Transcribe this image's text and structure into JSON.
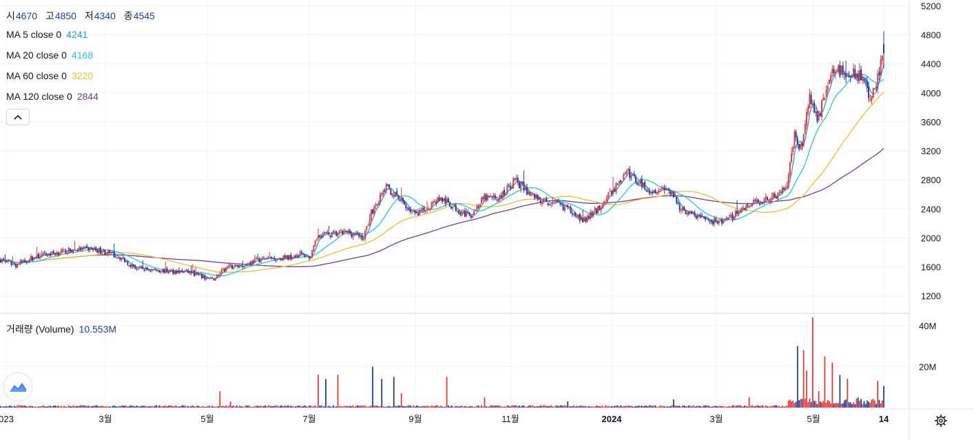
{
  "ohlc": {
    "open_label": "시",
    "open": "4670",
    "high_label": "고",
    "high": "4850",
    "low_label": "저",
    "low": "4340",
    "close_label": "종",
    "close": "4545"
  },
  "ma_legend": [
    {
      "label": "MA 5 close 0",
      "value": "4241",
      "color": "#2196f3"
    },
    {
      "label": "MA 20 close 0",
      "value": "4168",
      "color": "#26c6da"
    },
    {
      "label": "MA 60 close 0",
      "value": "3220",
      "color": "#f5bb2f"
    },
    {
      "label": "MA 120 close 0",
      "value": "2844",
      "color": "#6a3d9a"
    }
  ],
  "volume_legend": {
    "label": "거래량 (Volume)",
    "value": "10.553M"
  },
  "colors": {
    "up": "#e53935",
    "down": "#1e3fa0",
    "grid": "#f0f3fa",
    "axis_text": "#131722",
    "value_text": "#1e3fa0"
  },
  "icons": {
    "collapse": "chevron-up-icon",
    "logo": "tradingview-logo-icon",
    "settings": "gear-icon"
  },
  "chart_data": {
    "type": "candlestick",
    "price_ticks": [
      "5200",
      "4800",
      "4400",
      "4000",
      "3600",
      "3200",
      "2800",
      "2400",
      "2000",
      "1600",
      "1200"
    ],
    "volume_ticks": [
      "40M",
      "20M"
    ],
    "time_labels": [
      "023",
      "3월",
      "5월",
      "7월",
      "9월",
      "11월",
      "2024",
      "3월",
      "5월",
      "14"
    ],
    "price_range": [
      960,
      5280
    ],
    "volume_range": [
      0,
      46
    ],
    "x_range": [
      "2023-01",
      "2024-06-14"
    ],
    "last_candle": {
      "open": 4670,
      "high": 4850,
      "low": 4340,
      "close": 4545,
      "volume_m": 10.553
    },
    "ma_last": {
      "ma5": 4241,
      "ma20": 4168,
      "ma60": 3220,
      "ma120": 2844
    },
    "close_anchors": [
      [
        0,
        1700
      ],
      [
        10,
        1630
      ],
      [
        20,
        1720
      ],
      [
        35,
        1790
      ],
      [
        50,
        1840
      ],
      [
        60,
        1850
      ],
      [
        70,
        1800
      ],
      [
        80,
        1720
      ],
      [
        90,
        1580
      ],
      [
        110,
        1540
      ],
      [
        125,
        1530
      ],
      [
        135,
        1450
      ],
      [
        140,
        1420
      ],
      [
        150,
        1600
      ],
      [
        160,
        1620
      ],
      [
        170,
        1700
      ],
      [
        180,
        1720
      ],
      [
        190,
        1730
      ],
      [
        198,
        1780
      ],
      [
        205,
        1730
      ],
      [
        210,
        2050
      ],
      [
        220,
        2050
      ],
      [
        230,
        2080
      ],
      [
        240,
        2000
      ],
      [
        245,
        2350
      ],
      [
        255,
        2700
      ],
      [
        265,
        2500
      ],
      [
        275,
        2300
      ],
      [
        290,
        2550
      ],
      [
        300,
        2420
      ],
      [
        310,
        2300
      ],
      [
        320,
        2550
      ],
      [
        330,
        2550
      ],
      [
        340,
        2800
      ],
      [
        350,
        2600
      ],
      [
        360,
        2500
      ],
      [
        370,
        2450
      ],
      [
        380,
        2350
      ],
      [
        385,
        2220
      ],
      [
        395,
        2400
      ],
      [
        410,
        2800
      ],
      [
        415,
        2900
      ],
      [
        420,
        2800
      ],
      [
        430,
        2650
      ],
      [
        440,
        2700
      ],
      [
        450,
        2400
      ],
      [
        460,
        2300
      ],
      [
        470,
        2230
      ],
      [
        480,
        2230
      ],
      [
        490,
        2400
      ],
      [
        500,
        2500
      ],
      [
        510,
        2550
      ],
      [
        520,
        2700
      ],
      [
        525,
        3400
      ],
      [
        530,
        3200
      ],
      [
        535,
        4000
      ],
      [
        540,
        3600
      ],
      [
        545,
        4000
      ],
      [
        550,
        4300
      ],
      [
        560,
        4300
      ],
      [
        570,
        4200
      ],
      [
        575,
        3900
      ],
      [
        580,
        4200
      ],
      [
        584,
        4545
      ]
    ],
    "volume_spikes": [
      [
        145,
        8
      ],
      [
        152,
        3
      ],
      [
        210,
        16
      ],
      [
        215,
        14
      ],
      [
        223,
        16
      ],
      [
        246,
        20
      ],
      [
        252,
        14
      ],
      [
        260,
        15
      ],
      [
        265,
        7
      ],
      [
        295,
        15
      ],
      [
        320,
        5
      ],
      [
        375,
        3
      ],
      [
        445,
        4
      ],
      [
        495,
        5
      ],
      [
        527,
        30
      ],
      [
        531,
        28
      ],
      [
        533,
        18
      ],
      [
        537,
        44
      ],
      [
        541,
        8
      ],
      [
        545,
        25
      ],
      [
        550,
        22
      ],
      [
        555,
        16
      ],
      [
        560,
        14
      ],
      [
        567,
        5
      ],
      [
        580,
        13
      ]
    ]
  }
}
